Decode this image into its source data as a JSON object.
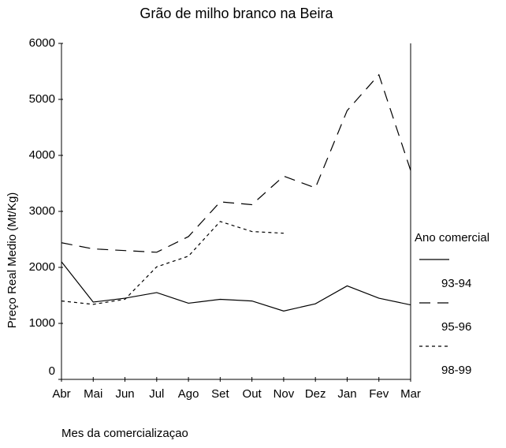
{
  "chart_data": {
    "type": "line",
    "title": "Grão de milho branco na Beira",
    "x_label": "Mes da comercializaçao",
    "y_label": "Preço Real Medio (Mt/Kg)",
    "legend_title": "Ano comercial",
    "categories": [
      "Abr",
      "Mai",
      "Jun",
      "Jul",
      "Ago",
      "Set",
      "Out",
      "Nov",
      "Dez",
      "Jan",
      "Fev",
      "Mar"
    ],
    "series": [
      {
        "name": "93-94",
        "color": "#000000",
        "dash": "none",
        "values": [
          2100,
          1380,
          1450,
          1550,
          1360,
          1430,
          1400,
          1220,
          1350,
          1670,
          1450,
          1330
        ]
      },
      {
        "name": "95-96",
        "color": "#000000",
        "dash": "14,9",
        "values": [
          2440,
          2330,
          2300,
          2270,
          2550,
          3170,
          3120,
          3630,
          3420,
          4800,
          5440,
          3730
        ]
      },
      {
        "name": "98-99",
        "color": "#000000",
        "dash": "4,4",
        "values": [
          1400,
          1340,
          1430,
          2010,
          2200,
          2820,
          2640,
          2610,
          null,
          null,
          null,
          null
        ]
      }
    ],
    "ylim": [
      0,
      6000
    ],
    "yticks": [
      0,
      1000,
      2000,
      3000,
      4000,
      5000,
      6000
    ]
  }
}
